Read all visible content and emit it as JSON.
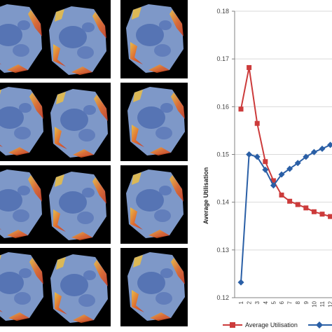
{
  "colors": {
    "tile_bg": "#000000",
    "map_base": "#7e98c8",
    "map_dark": "#4f6db0",
    "hot_orange": "#e8651f",
    "hot_yellow": "#f3c03a",
    "red_series": "#cc3b3b",
    "blue_series": "#2a5fa6",
    "axis": "#808080",
    "grid": "#d9d9d9"
  },
  "thumbnails": {
    "rows": 4,
    "cols": 3
  },
  "chart_data": {
    "type": "line",
    "ylabel": "Average Utilisation",
    "xlabel": "",
    "ylim": [
      0.12,
      0.18
    ],
    "yticks": [
      "0.12",
      "0.13",
      "0.14",
      "0.15",
      "0.16",
      "0.17",
      "0.18"
    ],
    "x": [
      1,
      2,
      3,
      4,
      5,
      6,
      7,
      8,
      9,
      10,
      11,
      12
    ],
    "xticks": [
      "1",
      "2",
      "3",
      "4",
      "5",
      "6",
      "7",
      "8",
      "9",
      "10",
      "11",
      "12"
    ],
    "grid": "horizontal",
    "legend_position": "bottom",
    "series": [
      {
        "name": "Average Utilisation",
        "color": "#cc3b3b",
        "marker": "square",
        "values": [
          0.1595,
          0.1682,
          0.1565,
          0.1485,
          0.1445,
          0.1415,
          0.1402,
          0.1395,
          0.1388,
          0.138,
          0.1375,
          0.137
        ]
      },
      {
        "name": "",
        "color": "#2a5fa6",
        "marker": "diamond",
        "values": [
          0.1232,
          0.15,
          0.1495,
          0.1468,
          0.1435,
          0.1458,
          0.147,
          0.1482,
          0.1495,
          0.1505,
          0.1512,
          0.152
        ]
      }
    ]
  }
}
